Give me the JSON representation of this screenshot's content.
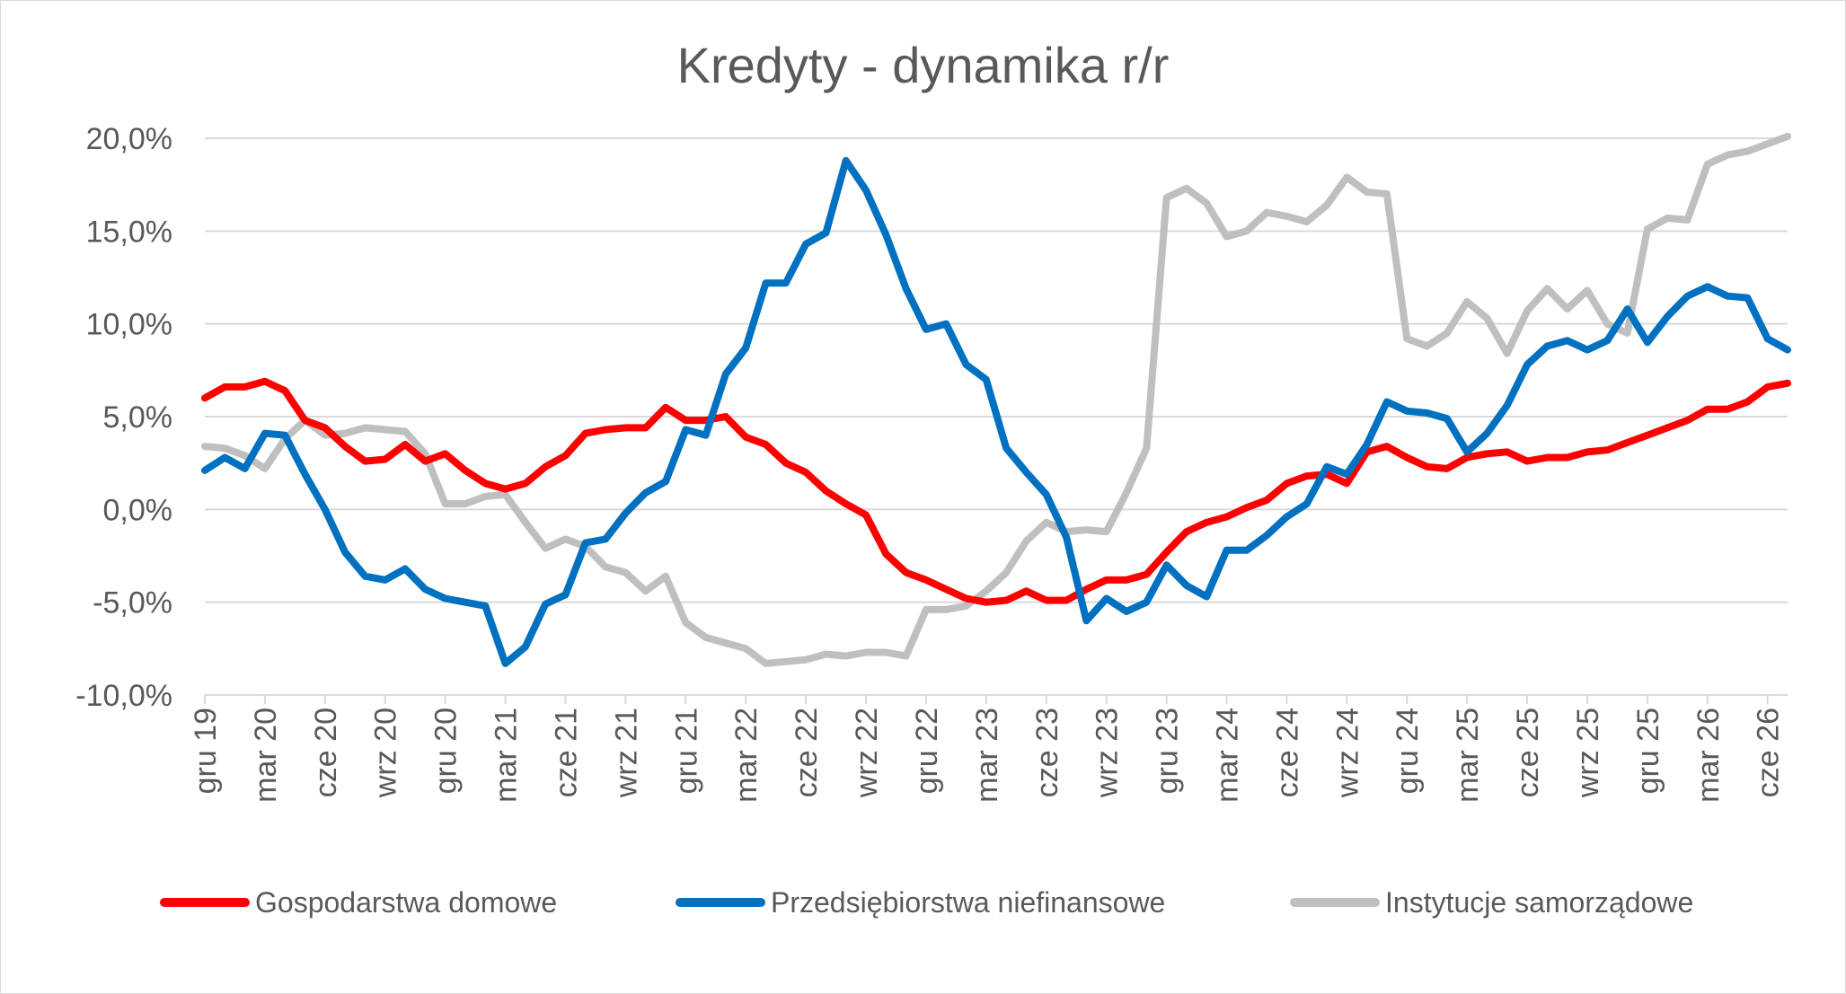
{
  "chart_data": {
    "type": "line",
    "title": "Kredyty - dynamika r/r",
    "xlabel": "",
    "ylabel": "",
    "ylim": [
      -10,
      20
    ],
    "y_ticks": [
      "20,0%",
      "15,0%",
      "10,0%",
      "5,0%",
      "0,0%",
      "-5,0%",
      "-10,0%"
    ],
    "y_tick_values": [
      20,
      15,
      10,
      5,
      0,
      -5,
      -10
    ],
    "grid": true,
    "legend_position": "bottom",
    "x_tick_labels": [
      "gru 19",
      "mar 20",
      "cze 20",
      "wrz 20",
      "gru 20",
      "mar 21",
      "cze 21",
      "wrz 21",
      "gru 21",
      "mar 22",
      "cze 22",
      "wrz 22",
      "gru 22",
      "mar 23",
      "cze 23",
      "wrz 23",
      "gru 23",
      "mar 24",
      "cze 24",
      "wrz 24",
      "gru 24",
      "mar 25",
      "cze 25",
      "wrz 25",
      "gru 25",
      "mar 26",
      "cze 26"
    ],
    "x_tick_index_step": 3,
    "point_count": 80,
    "series": [
      {
        "name": "Gospodarstwa domowe",
        "color": "#ff0000",
        "values": [
          6.0,
          6.6,
          6.6,
          6.9,
          6.4,
          4.8,
          4.4,
          3.4,
          2.6,
          2.7,
          3.5,
          2.6,
          3.0,
          2.1,
          1.4,
          1.1,
          1.4,
          2.3,
          2.9,
          4.1,
          4.3,
          4.4,
          4.4,
          5.5,
          4.8,
          4.8,
          5.0,
          3.9,
          3.5,
          2.5,
          2.0,
          1.0,
          0.3,
          -0.3,
          -2.4,
          -3.4,
          -3.8,
          -4.3,
          -4.8,
          -5.0,
          -4.9,
          -4.4,
          -4.9,
          -4.9,
          -4.3,
          -3.8,
          -3.8,
          -3.5,
          -2.3,
          -1.2,
          -0.7,
          -0.4,
          0.1,
          0.5,
          1.4,
          1.8,
          1.9,
          1.4,
          3.1,
          3.4,
          2.8,
          2.3,
          2.2,
          2.8,
          3.0,
          3.1,
          2.6,
          2.8,
          2.8,
          3.1,
          3.2,
          3.6,
          4.0,
          4.4,
          4.8,
          5.4,
          5.4,
          5.8,
          6.6,
          6.8
        ]
      },
      {
        "name": "Przedsiębiorstwa niefinansowe",
        "color": "#0070c0",
        "values": [
          2.1,
          2.8,
          2.2,
          4.1,
          4.0,
          1.9,
          0.0,
          -2.3,
          -3.6,
          -3.8,
          -3.2,
          -4.3,
          -4.8,
          -5.0,
          -5.2,
          -8.3,
          -7.4,
          -5.1,
          -4.6,
          -1.8,
          -1.6,
          -0.2,
          0.9,
          1.5,
          4.3,
          4.0,
          7.3,
          8.7,
          12.2,
          12.2,
          14.3,
          14.9,
          18.8,
          17.2,
          14.8,
          11.9,
          9.7,
          10.0,
          7.8,
          7.0,
          3.3,
          2.0,
          0.8,
          -1.5,
          -6.0,
          -4.8,
          -5.5,
          -5.0,
          -3.0,
          -4.1,
          -4.7,
          -2.2,
          -2.2,
          -1.4,
          -0.4,
          0.3,
          2.3,
          1.9,
          3.5,
          5.8,
          5.3,
          5.2,
          4.9,
          3.1,
          4.1,
          5.6,
          7.8,
          8.8,
          9.1,
          8.6,
          9.1,
          10.8,
          9.0,
          10.4,
          11.5,
          12.0,
          11.5,
          11.4,
          9.2,
          8.6
        ]
      },
      {
        "name": "Instytucje samorządowe",
        "color": "#bfbfbf",
        "values": [
          3.4,
          3.3,
          2.9,
          2.2,
          3.8,
          4.8,
          4.0,
          4.1,
          4.4,
          4.3,
          4.2,
          3.0,
          0.3,
          0.3,
          0.7,
          0.8,
          -0.7,
          -2.1,
          -1.6,
          -2.0,
          -3.1,
          -3.4,
          -4.4,
          -3.6,
          -6.1,
          -6.9,
          -7.2,
          -7.5,
          -8.3,
          -8.2,
          -8.1,
          -7.8,
          -7.9,
          -7.7,
          -7.7,
          -7.9,
          -5.4,
          -5.4,
          -5.2,
          -4.4,
          -3.4,
          -1.7,
          -0.7,
          -1.2,
          -1.1,
          -1.2,
          0.9,
          3.3,
          16.8,
          17.3,
          16.5,
          14.7,
          15.0,
          16.0,
          15.8,
          15.5,
          16.4,
          17.9,
          17.1,
          17.0,
          9.2,
          8.8,
          9.5,
          11.2,
          10.3,
          8.4,
          10.7,
          11.9,
          10.8,
          11.8,
          10.0,
          9.5,
          15.1,
          15.7,
          15.6,
          18.6,
          19.1,
          19.3,
          19.7,
          20.1
        ]
      }
    ]
  }
}
